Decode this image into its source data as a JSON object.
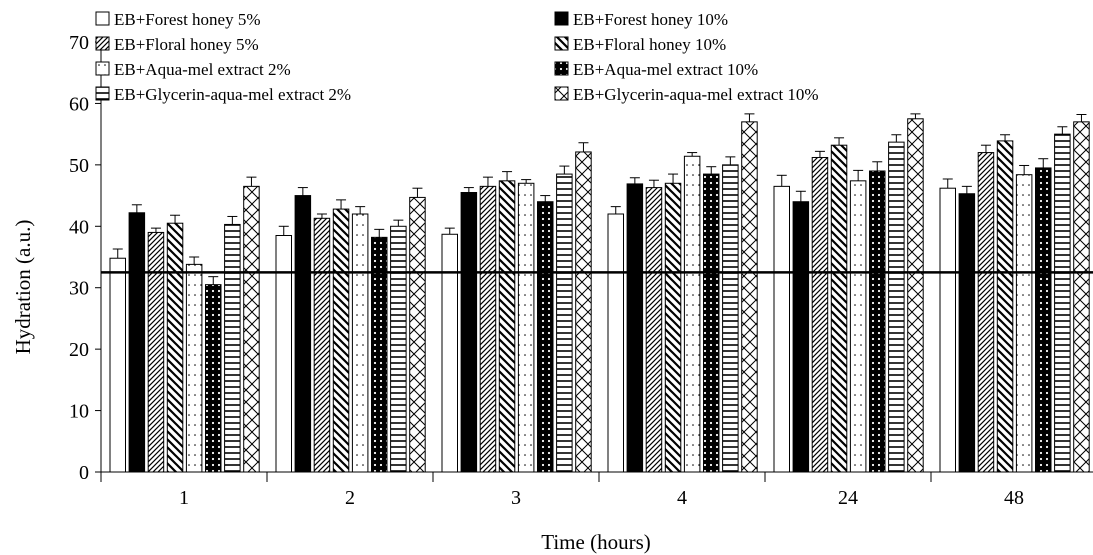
{
  "chart_data": {
    "type": "bar",
    "xlabel": "Time (hours)",
    "ylabel": "Hydration (a.u.)",
    "ylim": [
      0,
      70
    ],
    "yticks": [
      0,
      10,
      20,
      30,
      40,
      50,
      60,
      70
    ],
    "categories": [
      "1",
      "2",
      "3",
      "4",
      "24",
      "48"
    ],
    "reference_line": 32.5,
    "grid": false,
    "legend": "top, two columns",
    "series": [
      {
        "name": "EB+Forest honey 5%",
        "pattern": "plain",
        "values": [
          34.8,
          38.5,
          38.7,
          42.0,
          46.5,
          46.2
        ],
        "errors": [
          1.5,
          1.5,
          1.0,
          1.2,
          1.8,
          1.5
        ]
      },
      {
        "name": "EB+Forest honey 10%",
        "pattern": "solid",
        "values": [
          42.2,
          45.0,
          45.5,
          46.9,
          44.0,
          45.3
        ],
        "errors": [
          1.3,
          1.3,
          0.8,
          1.0,
          1.7,
          1.2
        ]
      },
      {
        "name": "EB+Floral honey 5%",
        "pattern": "diag-dense",
        "values": [
          39.0,
          41.3,
          46.5,
          46.3,
          51.2,
          52.0
        ],
        "errors": [
          0.7,
          0.7,
          1.5,
          1.2,
          1.0,
          1.2
        ]
      },
      {
        "name": "EB+Floral honey 10%",
        "pattern": "diag-wide",
        "values": [
          40.5,
          42.8,
          47.4,
          47.0,
          53.2,
          53.9
        ],
        "errors": [
          1.3,
          1.5,
          1.5,
          1.5,
          1.2,
          1.0
        ]
      },
      {
        "name": "EB+Aqua-mel extract 2%",
        "pattern": "dots",
        "values": [
          33.8,
          42.0,
          47.0,
          51.4,
          47.4,
          48.4
        ],
        "errors": [
          1.2,
          1.2,
          0.6,
          0.6,
          1.7,
          1.5
        ]
      },
      {
        "name": "EB+Aqua-mel extract 10%",
        "pattern": "dark-dots",
        "values": [
          30.5,
          38.2,
          44.0,
          48.5,
          49.0,
          49.5
        ],
        "errors": [
          1.3,
          1.3,
          1.0,
          1.2,
          1.5,
          1.5
        ]
      },
      {
        "name": "EB+Glycerin-aqua-mel extract 2%",
        "pattern": "hlines",
        "values": [
          40.3,
          40.0,
          48.5,
          50.0,
          53.7,
          55.0
        ],
        "errors": [
          1.3,
          1.0,
          1.3,
          1.3,
          1.2,
          1.2
        ]
      },
      {
        "name": "EB+Glycerin-aqua-mel extract 10%",
        "pattern": "cross",
        "values": [
          46.5,
          44.7,
          52.1,
          57.0,
          57.5,
          57.0
        ],
        "errors": [
          1.5,
          1.5,
          1.5,
          1.3,
          0.8,
          1.2
        ]
      }
    ]
  }
}
